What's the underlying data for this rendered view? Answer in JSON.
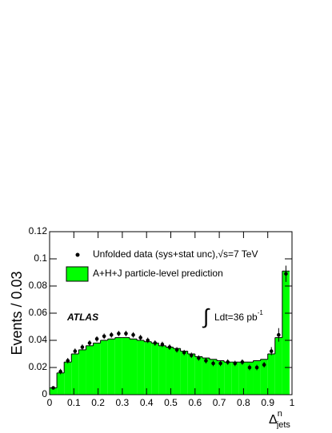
{
  "chart_data": {
    "type": "histogram",
    "ylabel": "Events / 0.03",
    "xlabel": {
      "symbol": "Δ",
      "sup": "n",
      "sub": "jets"
    },
    "xlim": [
      0,
      1
    ],
    "ylim": [
      0,
      0.12
    ],
    "xticks": [
      0,
      0.1,
      0.2,
      0.3,
      0.4,
      0.5,
      0.6,
      0.7,
      0.8,
      0.9,
      1
    ],
    "yticks": [
      0,
      0.02,
      0.04,
      0.06,
      0.08,
      0.1,
      0.12
    ],
    "bins": [
      0,
      0.03,
      0.06,
      0.09,
      0.12,
      0.15,
      0.18,
      0.21,
      0.24,
      0.27,
      0.3,
      0.33,
      0.36,
      0.39,
      0.42,
      0.45,
      0.48,
      0.51,
      0.54,
      0.57,
      0.6,
      0.63,
      0.66,
      0.69,
      0.72,
      0.75,
      0.78,
      0.81,
      0.84,
      0.87,
      0.9,
      0.93,
      0.96,
      0.99
    ],
    "series": [
      {
        "name": "A+H+J particle-level prediction",
        "type": "histogram",
        "color": "#00ff00",
        "values": [
          0.005,
          0.016,
          0.024,
          0.03,
          0.033,
          0.036,
          0.038,
          0.04,
          0.041,
          0.042,
          0.042,
          0.041,
          0.04,
          0.039,
          0.038,
          0.036,
          0.035,
          0.034,
          0.032,
          0.03,
          0.028,
          0.027,
          0.026,
          0.025,
          0.024,
          0.024,
          0.024,
          0.024,
          0.025,
          0.026,
          0.03,
          0.042,
          0.091
        ]
      },
      {
        "name": "Unfolded data (sys+stat unc),√s=7 TeV",
        "type": "scatter",
        "color": "#000000",
        "x": [
          0.015,
          0.045,
          0.075,
          0.105,
          0.135,
          0.165,
          0.195,
          0.225,
          0.255,
          0.285,
          0.315,
          0.345,
          0.375,
          0.405,
          0.435,
          0.465,
          0.495,
          0.525,
          0.555,
          0.585,
          0.615,
          0.645,
          0.675,
          0.705,
          0.735,
          0.765,
          0.795,
          0.825,
          0.855,
          0.885,
          0.915,
          0.945,
          0.975
        ],
        "values": [
          0.005,
          0.017,
          0.025,
          0.032,
          0.035,
          0.038,
          0.041,
          0.043,
          0.044,
          0.045,
          0.045,
          0.044,
          0.042,
          0.04,
          0.038,
          0.037,
          0.035,
          0.033,
          0.031,
          0.029,
          0.027,
          0.025,
          0.023,
          0.023,
          0.024,
          0.023,
          0.024,
          0.02,
          0.02,
          0.022,
          0.032,
          0.044,
          0.089
        ],
        "errors": [
          0.001,
          0.002,
          0.002,
          0.002,
          0.002,
          0.002,
          0.002,
          0.002,
          0.002,
          0.002,
          0.002,
          0.002,
          0.002,
          0.002,
          0.002,
          0.002,
          0.002,
          0.002,
          0.002,
          0.002,
          0.002,
          0.002,
          0.002,
          0.002,
          0.002,
          0.002,
          0.002,
          0.002,
          0.002,
          0.002,
          0.003,
          0.005,
          0.006
        ]
      }
    ],
    "annotations": {
      "experiment": "ATLAS",
      "integral": "∫",
      "lumi": "Ldt=36 pb",
      "lumi_exp": "-1"
    }
  }
}
